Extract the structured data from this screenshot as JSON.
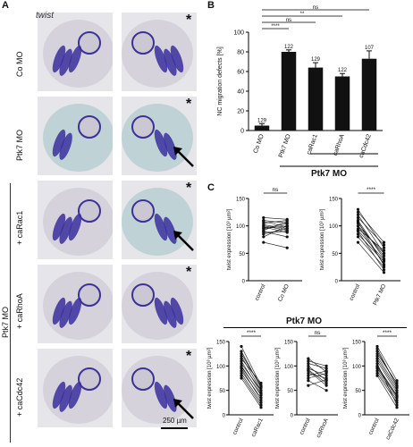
{
  "panels": {
    "a": "A",
    "b": "B",
    "c": "C"
  },
  "panel_a": {
    "gene": "twist",
    "rows": [
      {
        "label": "Co MO"
      },
      {
        "label": "Ptk7 MO"
      },
      {
        "label": "+ caRac1"
      },
      {
        "label": "+ caRhoA"
      },
      {
        "label": "+ caCdc42"
      }
    ],
    "group_label": "Ptk7 MO",
    "star": "*",
    "scale_bar": "250 µm"
  },
  "chart_data": [
    {
      "type": "bar",
      "ylabel": "NC migration defects [%]",
      "ylim": [
        0,
        100
      ],
      "yticks": [
        0,
        20,
        40,
        60,
        80,
        100
      ],
      "categories": [
        "Co MO",
        "Ptk7 MO",
        "caRac1",
        "caRhoA",
        "caCdc42"
      ],
      "values": [
        5,
        80,
        64,
        55,
        73
      ],
      "errors": [
        2,
        2,
        5,
        3,
        8
      ],
      "n_labels": [
        "129",
        "122",
        "129",
        "122",
        "107"
      ],
      "group_label": "Ptk7 MO",
      "significance": [
        "****",
        "ns",
        "**",
        "ns"
      ]
    },
    {
      "type": "scatter",
      "ylabel": "twist expression [10³ µm²]",
      "categories": [
        "control",
        "Co MO"
      ],
      "ylim": [
        0,
        150
      ],
      "yticks": [
        0,
        50,
        100,
        150
      ],
      "significance": "ns",
      "pairs": [
        [
          85,
          95
        ],
        [
          95,
          100
        ],
        [
          100,
          92
        ],
        [
          110,
          105
        ],
        [
          90,
          80
        ],
        [
          105,
          110
        ],
        [
          80,
          100
        ],
        [
          98,
          88
        ],
        [
          115,
          112
        ],
        [
          70,
          60
        ],
        [
          102,
          95
        ],
        [
          92,
          108
        ],
        [
          88,
          90
        ],
        [
          108,
          98
        ],
        [
          96,
          104
        ]
      ]
    },
    {
      "type": "scatter",
      "ylabel": "twist expression [10³ µm²]",
      "categories": [
        "control",
        "Ptk7 MO"
      ],
      "ylim": [
        0,
        150
      ],
      "yticks": [
        0,
        50,
        100,
        150
      ],
      "significance": "****",
      "pairs": [
        [
          130,
          60
        ],
        [
          120,
          50
        ],
        [
          110,
          40
        ],
        [
          100,
          30
        ],
        [
          95,
          55
        ],
        [
          105,
          45
        ],
        [
          90,
          20
        ],
        [
          85,
          35
        ],
        [
          115,
          65
        ],
        [
          80,
          25
        ],
        [
          125,
          70
        ],
        [
          70,
          15
        ],
        [
          100,
          50
        ],
        [
          92,
          38
        ],
        [
          108,
          28
        ]
      ]
    },
    {
      "type": "scatter",
      "title": "Ptk7 MO",
      "ylabel": "twist expression [10³ µm²]",
      "categories": [
        "control",
        "caRac1"
      ],
      "ylim": [
        0,
        150
      ],
      "yticks": [
        0,
        50,
        100,
        150
      ],
      "significance": "****",
      "pairs": [
        [
          140,
          60
        ],
        [
          130,
          55
        ],
        [
          120,
          50
        ],
        [
          110,
          45
        ],
        [
          100,
          40
        ],
        [
          95,
          30
        ],
        [
          90,
          35
        ],
        [
          85,
          25
        ],
        [
          80,
          20
        ],
        [
          115,
          65
        ],
        [
          105,
          50
        ],
        [
          75,
          15
        ],
        [
          125,
          58
        ],
        [
          98,
          42
        ]
      ]
    },
    {
      "type": "scatter",
      "ylabel": "twist expression [10³ µm²]",
      "categories": [
        "control",
        "caRhoA"
      ],
      "ylim": [
        0,
        150
      ],
      "yticks": [
        0,
        50,
        100,
        150
      ],
      "significance": "ns",
      "pairs": [
        [
          95,
          80
        ],
        [
          110,
          100
        ],
        [
          80,
          90
        ],
        [
          100,
          70
        ],
        [
          75,
          85
        ],
        [
          90,
          60
        ],
        [
          105,
          95
        ],
        [
          70,
          50
        ],
        [
          85,
          75
        ],
        [
          115,
          88
        ],
        [
          92,
          65
        ],
        [
          60,
          72
        ]
      ]
    },
    {
      "type": "scatter",
      "ylabel": "twist expression [10³ µm²]",
      "categories": [
        "control",
        "caCdc42"
      ],
      "ylim": [
        0,
        150
      ],
      "yticks": [
        0,
        50,
        100,
        150
      ],
      "significance": "****",
      "pairs": [
        [
          140,
          70
        ],
        [
          130,
          60
        ],
        [
          120,
          55
        ],
        [
          110,
          45
        ],
        [
          100,
          40
        ],
        [
          95,
          35
        ],
        [
          90,
          30
        ],
        [
          85,
          25
        ],
        [
          115,
          50
        ],
        [
          105,
          20
        ],
        [
          125,
          65
        ],
        [
          80,
          15
        ],
        [
          135,
          58
        ],
        [
          98,
          38
        ]
      ]
    }
  ]
}
